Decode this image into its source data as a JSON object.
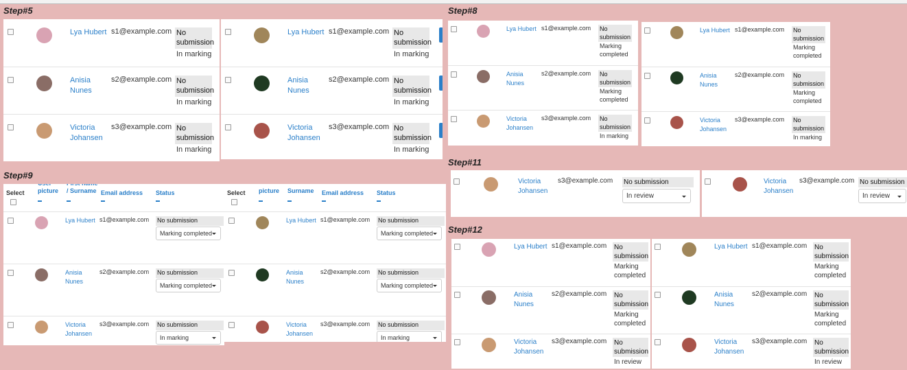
{
  "steps": [
    {
      "label": "Step#5",
      "panels": [
        {
          "rows": [
            {
              "name": "Lya Hubert",
              "email": "s1@example.com",
              "status": "No submission",
              "marking": "In marking"
            },
            {
              "name": "Anisia Nunes",
              "email": "s2@example.com",
              "status": "No submission",
              "marking": "In marking"
            },
            {
              "name": "Victoria Johansen",
              "email": "s3@example.com",
              "status": "No submission",
              "marking": "In marking"
            }
          ]
        },
        {
          "rows": [
            {
              "name": "Lya Hubert",
              "email": "s1@example.com",
              "status": "No submission",
              "marking": "In marking"
            },
            {
              "name": "Anisia Nunes",
              "email": "s2@example.com",
              "status": "No submission",
              "marking": "In marking"
            },
            {
              "name": "Victoria Johansen",
              "email": "s3@example.com",
              "status": "No submission",
              "marking": "In marking"
            }
          ]
        }
      ]
    },
    {
      "label": "Step#8",
      "panels": [
        {
          "rows": [
            {
              "name": "Lya Hubert",
              "email": "s1@example.com",
              "status": "No submission",
              "marking": "Marking completed"
            },
            {
              "name": "Anisia Nunes",
              "email": "s2@example.com",
              "status": "No submission",
              "marking": "Marking completed"
            },
            {
              "name": "Victoria Johansen",
              "email": "s3@example.com",
              "status": "No submission",
              "marking": "In marking"
            }
          ]
        },
        {
          "rows": [
            {
              "name": "Lya Hubert",
              "email": "s1@example.com",
              "status": "No submission",
              "marking": "Marking completed"
            },
            {
              "name": "Anisia Nunes",
              "email": "s2@example.com",
              "status": "No submission",
              "marking": "Marking completed"
            },
            {
              "name": "Victoria Johansen",
              "email": "s3@example.com",
              "status": "No submission",
              "marking": "In marking"
            }
          ]
        }
      ]
    },
    {
      "label": "Step#9",
      "panels": [
        {
          "header": [
            "Select",
            "User picture",
            "First name / Surname",
            "Email address",
            "Status"
          ],
          "rows": [
            {
              "name": "Lya Hubert",
              "email": "s1@example.com",
              "status": "No submission",
              "marking": "Marking completed"
            },
            {
              "name": "Anisia Nunes",
              "email": "s2@example.com",
              "status": "No submission",
              "marking": "Marking completed"
            },
            {
              "name": "Victoria Johansen",
              "email": "s3@example.com",
              "status": "No submission",
              "marking": "In marking"
            }
          ]
        },
        {
          "header": [
            "Select",
            "picture",
            "Surname",
            "Email address",
            "Status"
          ],
          "rows": [
            {
              "name": "Lya Hubert",
              "email": "s1@example.com",
              "status": "No submission",
              "marking": "Marking completed"
            },
            {
              "name": "Anisia Nunes",
              "email": "s2@example.com",
              "status": "No submission",
              "marking": "Marking completed"
            },
            {
              "name": "Victoria Johansen",
              "email": "s3@example.com",
              "status": "No submission",
              "marking": "In marking"
            }
          ]
        }
      ]
    },
    {
      "label": "Step#11",
      "panels": [
        {
          "rows": [
            {
              "name": "Victoria Johansen",
              "email": "s3@example.com",
              "status": "No submission",
              "marking": "In review"
            }
          ]
        },
        {
          "rows": [
            {
              "name": "Victoria Johansen",
              "email": "s3@example.com",
              "status": "No submission",
              "marking": "In review"
            }
          ]
        }
      ]
    },
    {
      "label": "Step#12",
      "panels": [
        {
          "rows": [
            {
              "name": "Lya Hubert",
              "email": "s1@example.com",
              "status": "No submission",
              "marking": "Marking completed"
            },
            {
              "name": "Anisia Nunes",
              "email": "s2@example.com",
              "status": "No submission",
              "marking": "Marking completed"
            },
            {
              "name": "Victoria Johansen",
              "email": "s3@example.com",
              "status": "No submission",
              "marking": "In review"
            }
          ]
        },
        {
          "rows": [
            {
              "name": "Lya Hubert",
              "email": "s1@example.com",
              "status": "No submission",
              "marking": "Marking completed"
            },
            {
              "name": "Anisia Nunes",
              "email": "s2@example.com",
              "status": "No submission",
              "marking": "Marking completed"
            },
            {
              "name": "Victoria Johansen",
              "email": "s3@example.com",
              "status": "No submission",
              "marking": "In review"
            }
          ]
        }
      ]
    }
  ]
}
